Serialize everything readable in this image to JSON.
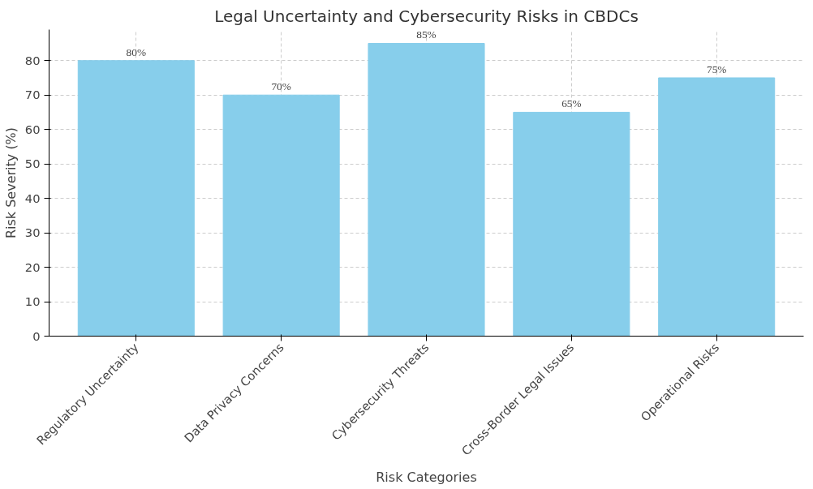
{
  "chart_data": {
    "type": "bar",
    "title": "Legal Uncertainty and Cybersecurity Risks in CBDCs",
    "xlabel": "Risk Categories",
    "ylabel": "Risk Severity (%)",
    "categories": [
      "Regulatory Uncertainty",
      "Data Privacy Concerns",
      "Cybersecurity Threats",
      "Cross-Border Legal Issues",
      "Operational Risks"
    ],
    "values": [
      80,
      70,
      85,
      65,
      75
    ],
    "value_labels": [
      "80%",
      "70%",
      "85%",
      "65%",
      "75%"
    ],
    "color": "#87ceeb",
    "ylim": [
      0,
      89
    ],
    "yticks": [
      0,
      10,
      20,
      30,
      40,
      50,
      60,
      70,
      80
    ],
    "grid": true
  }
}
